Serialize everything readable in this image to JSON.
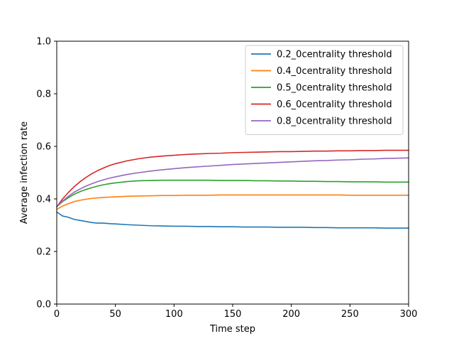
{
  "chart_data": {
    "type": "line",
    "title": "",
    "xlabel": "Time step",
    "ylabel": "Average infection rate",
    "xlim": [
      0,
      300
    ],
    "ylim": [
      0.0,
      1.0
    ],
    "xticks": [
      0,
      50,
      100,
      150,
      200,
      250,
      300
    ],
    "xtick_labels": [
      "0",
      "50",
      "100",
      "150",
      "200",
      "250",
      "300"
    ],
    "yticks": [
      0.0,
      0.2,
      0.4,
      0.6,
      0.8,
      1.0
    ],
    "ytick_labels": [
      "0.0",
      "0.2",
      "0.4",
      "0.6",
      "0.8",
      "1.0"
    ],
    "grid": false,
    "legend_position": "top-right",
    "x": [
      0,
      5,
      10,
      15,
      20,
      25,
      30,
      35,
      40,
      45,
      50,
      60,
      70,
      80,
      90,
      100,
      110,
      120,
      130,
      140,
      150,
      160,
      170,
      180,
      190,
      200,
      210,
      220,
      230,
      240,
      250,
      260,
      270,
      280,
      290,
      300
    ],
    "series": [
      {
        "name": "0.2_0centrality threshold",
        "color": "#1f77b4",
        "values": [
          0.35,
          0.335,
          0.33,
          0.322,
          0.318,
          0.314,
          0.31,
          0.308,
          0.308,
          0.306,
          0.305,
          0.302,
          0.3,
          0.298,
          0.297,
          0.296,
          0.296,
          0.295,
          0.295,
          0.294,
          0.294,
          0.293,
          0.293,
          0.293,
          0.292,
          0.292,
          0.292,
          0.291,
          0.291,
          0.29,
          0.29,
          0.29,
          0.29,
          0.289,
          0.289,
          0.289
        ]
      },
      {
        "name": "0.4_0centrality threshold",
        "color": "#ff7f0e",
        "values": [
          0.36,
          0.373,
          0.382,
          0.39,
          0.395,
          0.399,
          0.402,
          0.404,
          0.406,
          0.407,
          0.408,
          0.41,
          0.411,
          0.412,
          0.413,
          0.413,
          0.414,
          0.414,
          0.414,
          0.415,
          0.415,
          0.415,
          0.415,
          0.415,
          0.415,
          0.415,
          0.415,
          0.415,
          0.415,
          0.415,
          0.414,
          0.414,
          0.414,
          0.414,
          0.414,
          0.414
        ]
      },
      {
        "name": "0.5_0centrality threshold",
        "color": "#2ca02c",
        "values": [
          0.37,
          0.39,
          0.405,
          0.418,
          0.428,
          0.436,
          0.443,
          0.449,
          0.454,
          0.458,
          0.461,
          0.466,
          0.469,
          0.47,
          0.471,
          0.471,
          0.471,
          0.471,
          0.471,
          0.47,
          0.47,
          0.47,
          0.469,
          0.469,
          0.468,
          0.468,
          0.467,
          0.467,
          0.466,
          0.466,
          0.465,
          0.465,
          0.465,
          0.464,
          0.464,
          0.464
        ]
      },
      {
        "name": "0.6_0centrality threshold",
        "color": "#d62728",
        "values": [
          0.37,
          0.4,
          0.425,
          0.447,
          0.466,
          0.482,
          0.496,
          0.508,
          0.518,
          0.527,
          0.534,
          0.545,
          0.553,
          0.559,
          0.563,
          0.566,
          0.569,
          0.571,
          0.573,
          0.574,
          0.576,
          0.577,
          0.578,
          0.579,
          0.58,
          0.58,
          0.581,
          0.582,
          0.582,
          0.583,
          0.583,
          0.584,
          0.584,
          0.585,
          0.585,
          0.585
        ]
      },
      {
        "name": "0.8_0centrality threshold",
        "color": "#9467bd",
        "values": [
          0.37,
          0.392,
          0.41,
          0.426,
          0.438,
          0.449,
          0.458,
          0.466,
          0.473,
          0.479,
          0.484,
          0.493,
          0.5,
          0.506,
          0.511,
          0.515,
          0.519,
          0.522,
          0.525,
          0.528,
          0.531,
          0.533,
          0.535,
          0.537,
          0.539,
          0.541,
          0.543,
          0.545,
          0.546,
          0.548,
          0.549,
          0.551,
          0.552,
          0.554,
          0.555,
          0.556
        ]
      }
    ]
  }
}
